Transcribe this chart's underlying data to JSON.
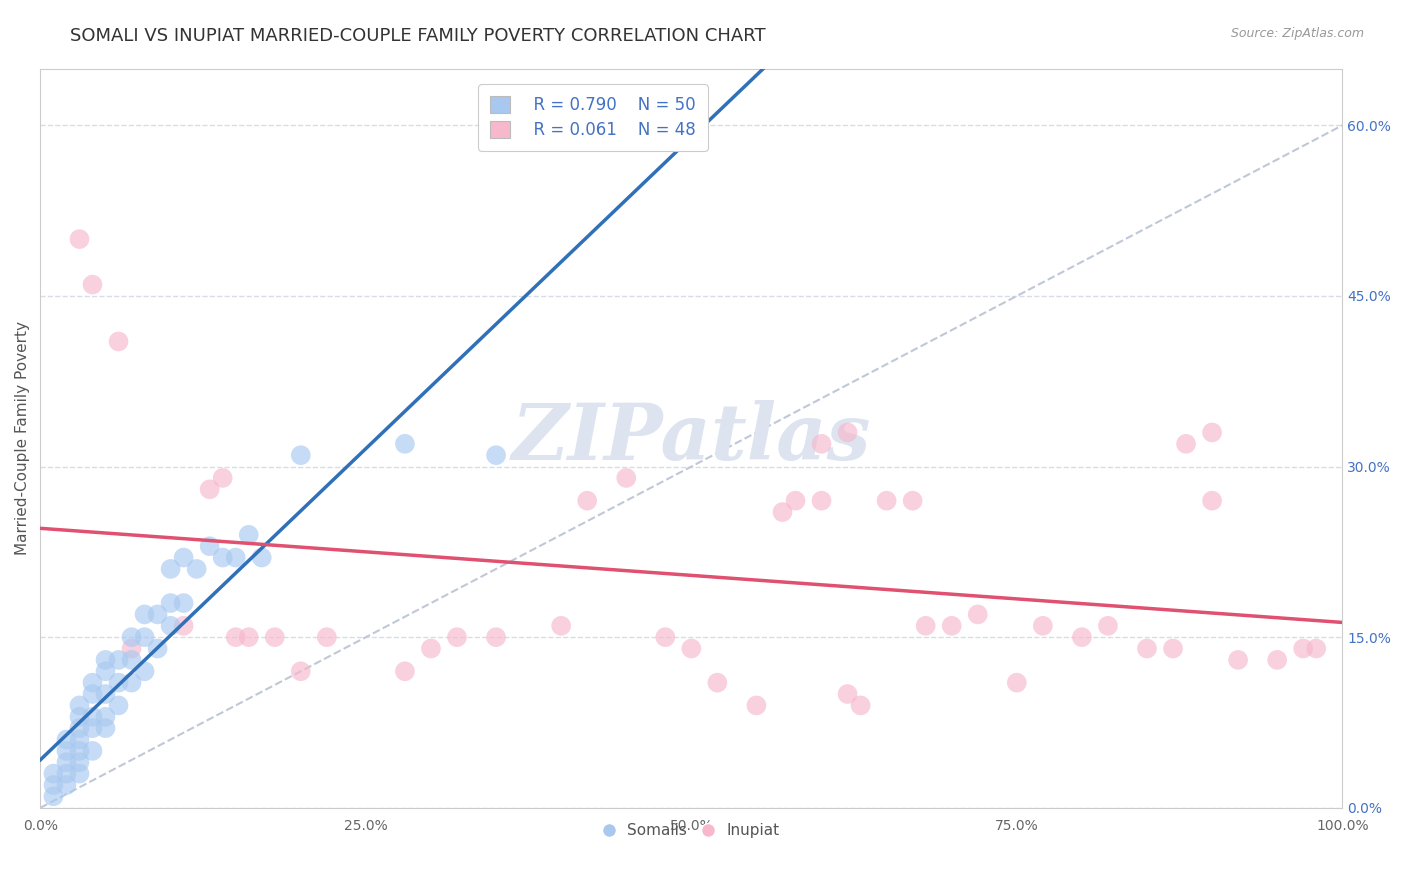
{
  "title": "SOMALI VS INUPIAT MARRIED-COUPLE FAMILY POVERTY CORRELATION CHART",
  "source_text": "Source: ZipAtlas.com",
  "ylabel": "Married-Couple Family Poverty",
  "xlim": [
    0,
    100
  ],
  "ylim": [
    0,
    65
  ],
  "yticks": [
    0,
    15,
    30,
    45,
    60
  ],
  "xticks": [
    0,
    25,
    50,
    75,
    100
  ],
  "xtick_labels": [
    "0.0%",
    "25.0%",
    "50.0%",
    "75.0%",
    "100.0%"
  ],
  "ytick_labels": [
    "0.0%",
    "15.0%",
    "30.0%",
    "45.0%",
    "60.0%"
  ],
  "legend_r_somali": "R = 0.790",
  "legend_n_somali": "N = 50",
  "legend_r_inupiat": "R = 0.061",
  "legend_n_inupiat": "N = 48",
  "somali_color": "#a8c8f0",
  "inupiat_color": "#f7b8cb",
  "somali_line_color": "#3070b8",
  "inupiat_line_color": "#e05070",
  "diagonal_color": "#c0c8d8",
  "background_color": "#ffffff",
  "grid_color": "#d8dce8",
  "watermark_text": "ZIPatlas",
  "watermark_color": "#dde4f0",
  "title_fontsize": 13,
  "axis_label_fontsize": 11,
  "tick_fontsize": 10,
  "legend_fontsize": 12,
  "somali_x": [
    1,
    1,
    1,
    2,
    2,
    2,
    2,
    2,
    3,
    3,
    3,
    3,
    3,
    3,
    3,
    4,
    4,
    4,
    4,
    4,
    5,
    5,
    5,
    5,
    5,
    6,
    6,
    6,
    7,
    7,
    7,
    8,
    8,
    8,
    9,
    9,
    10,
    10,
    10,
    11,
    11,
    12,
    13,
    14,
    15,
    16,
    17,
    20,
    28,
    35
  ],
  "somali_y": [
    1,
    2,
    3,
    2,
    3,
    4,
    5,
    6,
    3,
    4,
    5,
    6,
    7,
    8,
    9,
    5,
    7,
    8,
    10,
    11,
    7,
    8,
    10,
    12,
    13,
    9,
    11,
    13,
    11,
    13,
    15,
    12,
    15,
    17,
    14,
    17,
    16,
    18,
    21,
    18,
    22,
    21,
    23,
    22,
    22,
    24,
    22,
    31,
    32,
    31
  ],
  "inupiat_x": [
    3,
    4,
    6,
    7,
    11,
    13,
    14,
    15,
    16,
    18,
    20,
    22,
    28,
    30,
    32,
    35,
    40,
    42,
    45,
    48,
    50,
    52,
    55,
    57,
    58,
    60,
    62,
    63,
    65,
    67,
    68,
    70,
    72,
    75,
    77,
    80,
    82,
    85,
    87,
    90,
    92,
    95,
    97,
    98,
    60,
    62,
    88,
    90
  ],
  "inupiat_y": [
    50,
    46,
    41,
    14,
    16,
    28,
    29,
    15,
    15,
    15,
    12,
    15,
    12,
    14,
    15,
    15,
    16,
    27,
    29,
    15,
    14,
    11,
    9,
    26,
    27,
    27,
    10,
    9,
    27,
    27,
    16,
    16,
    17,
    11,
    16,
    15,
    16,
    14,
    14,
    27,
    13,
    13,
    14,
    14,
    32,
    33,
    32,
    33
  ]
}
